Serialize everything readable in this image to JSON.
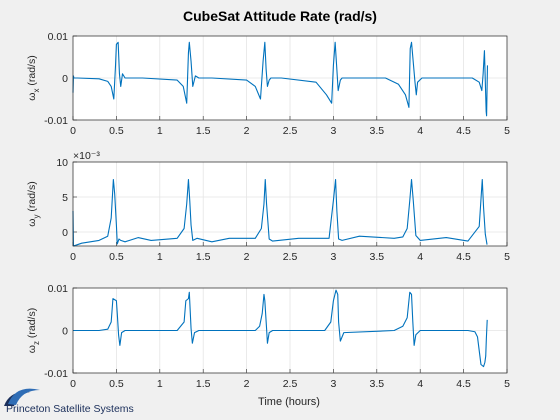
{
  "chart_data": [
    {
      "type": "line",
      "title": "CubeSat Attitude Rate (rad/s)",
      "xlabel": "",
      "ylabel_main": "ω",
      "ylabel_sub": "x",
      "ylabel_units": "(rad/s)",
      "xlim": [
        0,
        5
      ],
      "ylim": [
        -0.01,
        0.01
      ],
      "xticks": [
        0,
        0.5,
        1,
        1.5,
        2,
        2.5,
        3,
        3.5,
        4,
        4.5,
        5
      ],
      "xtick_labels": [
        "0",
        "0.5",
        "1",
        "1.5",
        "2",
        "2.5",
        "3",
        "3.5",
        "4",
        "4.5",
        "5"
      ],
      "yticks": [
        -0.01,
        0,
        0.01
      ],
      "ytick_labels": [
        "-0.01",
        "0",
        "0.01"
      ],
      "exponent": "",
      "series": [
        {
          "name": "omega_x",
          "color": "#0072BD",
          "x": [
            0,
            0.005,
            0.01,
            0.05,
            0.3,
            0.4,
            0.44,
            0.47,
            0.49,
            0.5,
            0.52,
            0.535,
            0.55,
            0.57,
            0.6,
            0.8,
            1.2,
            1.27,
            1.31,
            1.33,
            1.34,
            1.36,
            1.38,
            1.41,
            1.45,
            1.6,
            2.0,
            2.1,
            2.16,
            2.19,
            2.21,
            2.225,
            2.24,
            2.26,
            2.28,
            2.31,
            2.4,
            2.8,
            2.92,
            2.98,
            3.0,
            3.02,
            3.04,
            3.055,
            3.08,
            3.1,
            3.2,
            3.6,
            3.75,
            3.83,
            3.87,
            3.885,
            3.9,
            3.94,
            3.955,
            3.97,
            4.02,
            4.2,
            4.6,
            4.68,
            4.71,
            4.725,
            4.74,
            4.76,
            4.765,
            4.775
          ],
          "y": [
            -0.0035,
            0.0005,
            0,
            0,
            -0.0002,
            -0.0008,
            -0.002,
            -0.005,
            0.003,
            0.008,
            0.0085,
            0.001,
            -0.002,
            0.001,
            0,
            0,
            -0.0005,
            -0.002,
            -0.006,
            0.006,
            0.0085,
            0.004,
            -0.002,
            0.0005,
            0,
            0,
            -0.0005,
            -0.002,
            -0.005,
            0.004,
            0.0085,
            0.002,
            -0.002,
            -0.0005,
            0,
            0,
            0,
            -0.001,
            -0.004,
            -0.006,
            0.003,
            0.0085,
            0.002,
            -0.003,
            -0.0005,
            0,
            0,
            0,
            -0.0015,
            -0.004,
            -0.007,
            0.007,
            0.0085,
            -0.001,
            -0.004,
            -0.001,
            0,
            0,
            0,
            -0.001,
            -0.003,
            0.001,
            0.0065,
            -0.008,
            -0.009,
            0.003
          ]
        }
      ]
    },
    {
      "type": "line",
      "title": "",
      "xlabel": "",
      "ylabel_main": "ω",
      "ylabel_sub": "y",
      "ylabel_units": "(rad/s)",
      "xlim": [
        0,
        5
      ],
      "ylim": [
        -0.002,
        0.01
      ],
      "xticks": [
        0,
        0.5,
        1,
        1.5,
        2,
        2.5,
        3,
        3.5,
        4,
        4.5,
        5
      ],
      "xtick_labels": [
        "0",
        "0.5",
        "1",
        "1.5",
        "2",
        "2.5",
        "3",
        "3.5",
        "4",
        "4.5",
        "5"
      ],
      "yticks": [
        0,
        0.005,
        0.01
      ],
      "ytick_labels": [
        "0",
        "5",
        "10"
      ],
      "exponent": "×10⁻³",
      "series": [
        {
          "name": "omega_y",
          "color": "#0072BD",
          "x": [
            0,
            0.005,
            0.01,
            0.03,
            0.1,
            0.3,
            0.4,
            0.44,
            0.465,
            0.48,
            0.5,
            0.51,
            0.53,
            0.55,
            0.6,
            0.75,
            0.9,
            1.2,
            1.28,
            1.31,
            1.33,
            1.345,
            1.36,
            1.38,
            1.43,
            1.6,
            1.8,
            2.1,
            2.17,
            2.2,
            2.215,
            2.23,
            2.26,
            2.3,
            2.6,
            2.95,
            3.0,
            3.025,
            3.04,
            3.06,
            3.1,
            3.3,
            3.7,
            3.8,
            3.85,
            3.88,
            3.9,
            3.92,
            3.95,
            4.0,
            4.3,
            4.55,
            4.68,
            4.715,
            4.73,
            4.75,
            4.77
          ],
          "y": [
            0.003,
            -0.0018,
            -0.002,
            -0.0019,
            -0.0016,
            -0.0012,
            -0.0006,
            0.002,
            0.0075,
            0.0055,
            0.001,
            -0.0017,
            -0.001,
            -0.0012,
            -0.0014,
            -0.0008,
            -0.0012,
            -0.0009,
            0.0005,
            0.004,
            0.0075,
            0.0045,
            0.001,
            -0.0012,
            -0.0009,
            -0.0014,
            -0.0009,
            -0.0009,
            0.0005,
            0.004,
            0.0075,
            0.004,
            -0.001,
            -0.0013,
            -0.0009,
            -0.0009,
            0.0045,
            0.0075,
            0.003,
            -0.001,
            -0.0012,
            -0.0006,
            -0.0009,
            -0.0007,
            0.0005,
            0.0045,
            0.0075,
            0.0045,
            -0.0005,
            -0.0012,
            -0.0008,
            -0.0013,
            0.0008,
            0.0075,
            0.0035,
            -0.0003,
            -0.0018
          ]
        }
      ]
    },
    {
      "type": "line",
      "title": "",
      "xlabel": "Time (hours)",
      "ylabel_main": "ω",
      "ylabel_sub": "z",
      "ylabel_units": "(rad/s)",
      "xlim": [
        0,
        5
      ],
      "ylim": [
        -0.01,
        0.01
      ],
      "xticks": [
        0,
        0.5,
        1,
        1.5,
        2,
        2.5,
        3,
        3.5,
        4,
        4.5,
        5
      ],
      "xtick_labels": [
        "0",
        "0.5",
        "1",
        "1.5",
        "2",
        "2.5",
        "3",
        "3.5",
        "4",
        "4.5",
        "5"
      ],
      "yticks": [
        -0.01,
        0,
        0.01
      ],
      "ytick_labels": [
        "-0.01",
        "0",
        "0.01"
      ],
      "exponent": "",
      "series": [
        {
          "name": "omega_z",
          "color": "#0072BD",
          "x": [
            0,
            0.3,
            0.4,
            0.44,
            0.46,
            0.5,
            0.51,
            0.525,
            0.54,
            0.56,
            0.6,
            1.2,
            1.28,
            1.3,
            1.33,
            1.34,
            1.36,
            1.375,
            1.4,
            1.45,
            2.1,
            2.15,
            2.18,
            2.2,
            2.21,
            2.23,
            2.24,
            2.26,
            2.3,
            2.9,
            2.97,
            3.0,
            3.03,
            3.05,
            3.06,
            3.08,
            3.12,
            3.7,
            3.8,
            3.85,
            3.88,
            3.9,
            3.915,
            3.93,
            3.95,
            4.0,
            4.55,
            4.63,
            4.66,
            4.7,
            4.73,
            4.745,
            4.755,
            4.762,
            4.772
          ],
          "y": [
            0,
            0,
            0.0003,
            0.002,
            0.0075,
            0.007,
            0.004,
            -0.001,
            -0.0035,
            -0.0005,
            0,
            0,
            0.002,
            0.007,
            0.0075,
            0.009,
            0.0005,
            -0.003,
            -0.0005,
            0,
            0,
            0.001,
            0.004,
            0.0085,
            0.007,
            0.0005,
            -0.003,
            -0.0005,
            0,
            0,
            0.002,
            0.007,
            0.0095,
            0.0085,
            0.002,
            -0.0025,
            -0.0005,
            0,
            0.001,
            0.003,
            0.009,
            0.0085,
            0.002,
            -0.0035,
            -0.001,
            0,
            0,
            -0.0003,
            -0.0015,
            -0.008,
            -0.0085,
            -0.0075,
            -0.006,
            -0.002,
            0.0025
          ]
        }
      ]
    }
  ],
  "footer": {
    "logo_text": "Princeton Satellite Systems"
  },
  "icons": {
    "logo": "orbit-swoosh-icon"
  },
  "colors": {
    "line": "#0072BD",
    "axes_bg": "#ffffff",
    "figure_bg": "#f0f0f0",
    "grid": "#e4e4e4",
    "logo_primary": "#1a2e5a",
    "logo_accent": "#2f6db5"
  }
}
